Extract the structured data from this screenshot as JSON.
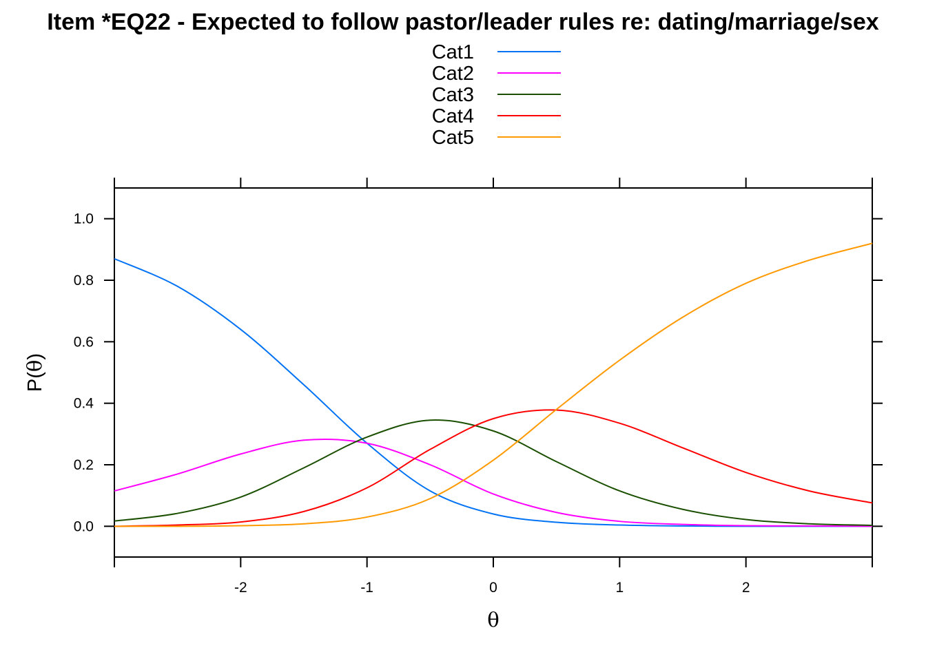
{
  "chart_data": {
    "type": "line",
    "title": "Item *EQ22 - Expected to follow pastor/leader rules re: dating/marriage/sex",
    "xlabel": "θ",
    "ylabel_prefix": "P(",
    "ylabel_symbol": "θ",
    "ylabel_suffix": ")",
    "xlim": [
      -3,
      3
    ],
    "ylim": [
      -0.1,
      1.1
    ],
    "x_ticks": [
      -2,
      -1,
      0,
      1,
      2
    ],
    "x_tick_labels": [
      "-2",
      "-1",
      "0",
      "1",
      "2"
    ],
    "y_ticks": [
      0,
      0.2,
      0.4,
      0.6,
      0.8,
      1.0
    ],
    "y_tick_labels": [
      "0.0",
      "0.2",
      "0.4",
      "0.6",
      "0.8",
      "1.0"
    ],
    "legend_placement": "top",
    "grid": false,
    "x": [
      -3.0,
      -2.5,
      -2.0,
      -1.5,
      -1.0,
      -0.5,
      0.0,
      0.5,
      1.0,
      1.5,
      2.0,
      2.5,
      3.0
    ],
    "series": [
      {
        "name": "Cat1",
        "color": "#0072F5",
        "values": [
          0.87,
          0.78,
          0.64,
          0.46,
          0.27,
          0.115,
          0.04,
          0.013,
          0.004,
          0.001,
          0.0,
          0.0,
          0.0
        ]
      },
      {
        "name": "Cat2",
        "color": "#FF00FF",
        "values": [
          0.115,
          0.17,
          0.235,
          0.28,
          0.27,
          0.2,
          0.105,
          0.045,
          0.016,
          0.006,
          0.002,
          0.001,
          0.0
        ]
      },
      {
        "name": "Cat3",
        "color": "#1A4F00",
        "values": [
          0.017,
          0.042,
          0.095,
          0.19,
          0.29,
          0.345,
          0.31,
          0.21,
          0.115,
          0.055,
          0.022,
          0.008,
          0.003
        ]
      },
      {
        "name": "Cat4",
        "color": "#FF0000",
        "values": [
          0.0,
          0.004,
          0.014,
          0.048,
          0.125,
          0.25,
          0.35,
          0.378,
          0.335,
          0.255,
          0.175,
          0.115,
          0.076
        ]
      },
      {
        "name": "Cat5",
        "color": "#FF9900",
        "values": [
          0.0,
          0.0,
          0.002,
          0.008,
          0.03,
          0.09,
          0.215,
          0.38,
          0.54,
          0.68,
          0.79,
          0.865,
          0.92
        ]
      }
    ]
  }
}
